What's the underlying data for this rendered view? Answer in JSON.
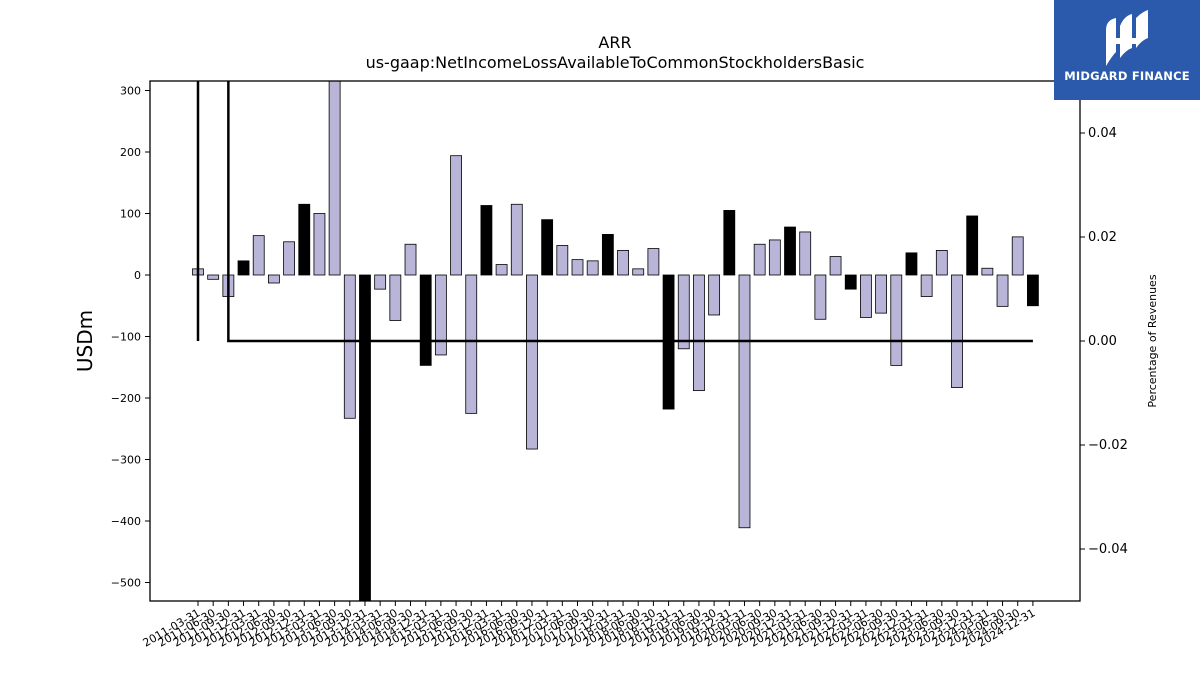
{
  "chart_data": {
    "type": "bar",
    "title": "ARR",
    "subtitle": "us-gaap:NetIncomeLossAvailableToCommonStockholdersBasic",
    "ylabel": "USDm",
    "y2label": "Percentage of Revenues",
    "ylim": [
      -530,
      315
    ],
    "y2lim": [
      -0.05,
      0.0503
    ],
    "yticks": [
      300,
      200,
      100,
      0,
      -100,
      -200,
      -300,
      -400,
      -500
    ],
    "y2ticks": [
      0.04,
      0.02,
      0.0,
      -0.02,
      -0.04
    ],
    "y2tick_labels": [
      "0.04",
      "0.02",
      "0.00",
      "−0.02",
      "−0.04"
    ],
    "bar_color_default": "#b9b5d8",
    "bar_color_q4": "#000000",
    "categories": [
      "2011-03-31",
      "2011-06-30",
      "2011-09-30",
      "2011-12-31",
      "2012-03-31",
      "2012-06-30",
      "2012-09-30",
      "2012-12-31",
      "2013-03-31",
      "2013-06-30",
      "2013-09-30",
      "2013-12-31",
      "2014-03-31",
      "2014-06-30",
      "2014-09-30",
      "2014-12-31",
      "2015-03-31",
      "2015-06-30",
      "2015-09-30",
      "2015-12-31",
      "2016-03-31",
      "2016-06-30",
      "2016-09-30",
      "2016-12-31",
      "2017-03-31",
      "2017-06-30",
      "2017-09-30",
      "2017-12-31",
      "2018-03-31",
      "2018-06-30",
      "2018-09-30",
      "2018-12-31",
      "2019-03-31",
      "2019-06-30",
      "2019-09-30",
      "2019-12-31",
      "2020-03-31",
      "2020-06-30",
      "2020-09-30",
      "2020-12-31",
      "2021-03-31",
      "2021-06-30",
      "2021-09-30",
      "2021-12-31",
      "2022-03-31",
      "2022-06-30",
      "2022-09-30",
      "2022-12-31",
      "2023-03-31",
      "2023-06-30",
      "2023-09-30",
      "2023-12-31",
      "2024-03-31",
      "2024-06-30",
      "2024-09-30",
      "2024-12-31"
    ],
    "values": [
      10,
      -7,
      -35,
      23,
      64,
      -13,
      54,
      115,
      100,
      320,
      -233,
      -530,
      -23,
      -74,
      50,
      -147,
      -130,
      194,
      -225,
      113,
      17,
      115,
      -283,
      90,
      48,
      25,
      23,
      66,
      40,
      10,
      43,
      -218,
      -120,
      -188,
      -65,
      105,
      -411,
      50,
      57,
      78,
      70,
      -72,
      30,
      -23,
      -69,
      -62,
      -147,
      36,
      -35,
      40,
      -183,
      96,
      11,
      -51,
      62,
      -50
    ],
    "pct_line": {
      "x_start": "2011-03-31",
      "x_end": "2024-12-31",
      "baseline_pct": 0.0,
      "spikes": [
        {
          "x": "2011-03-31",
          "pct": 0.4
        },
        {
          "x": "2011-09-30",
          "pct": 0.4
        }
      ]
    },
    "legend": "none",
    "grid": false
  },
  "logo": {
    "text": "MIDGARD FINANCE",
    "color": "#2b5aad"
  }
}
